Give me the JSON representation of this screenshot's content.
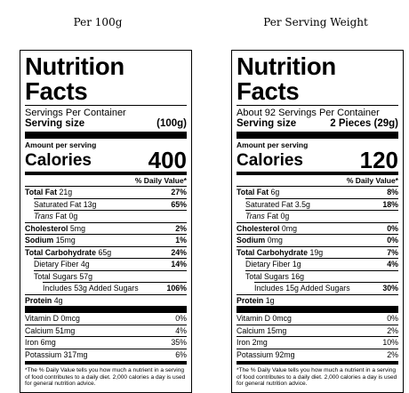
{
  "headings": {
    "left": "Per 100g",
    "right": "Per Serving Weight"
  },
  "labels": [
    {
      "title": "Nutrition Facts",
      "servings_line": "Servings Per Container",
      "serving_size_label": "Serving size",
      "serving_size_value": "(100g)",
      "amount_per_serving": "Amount per serving",
      "calories_label": "Calories",
      "calories_value": "400",
      "dv_header": "% Daily Value*",
      "total_fat": {
        "label": "Total Fat",
        "amount": "21g",
        "dv": "27%"
      },
      "saturated_fat": {
        "label": "Saturated Fat",
        "amount": "13g",
        "dv": "65%"
      },
      "trans_fat": {
        "label": "Trans",
        "rest": " Fat 0g"
      },
      "cholesterol": {
        "label": "Cholesterol",
        "amount": "5mg",
        "dv": "2%"
      },
      "sodium": {
        "label": "Sodium",
        "amount": "15mg",
        "dv": "1%"
      },
      "total_carb": {
        "label": "Total Carbohydrate",
        "amount": "65g",
        "dv": "24%"
      },
      "fiber": {
        "label": "Dietary Fiber",
        "amount": "4g",
        "dv": "14%"
      },
      "total_sugars": {
        "label": "Total Sugars",
        "amount": "57g"
      },
      "added_sugars": {
        "text": "Includes 53g Added Sugars",
        "dv": "106%"
      },
      "protein": {
        "label": "Protein",
        "amount": "4g"
      },
      "vitamin_d": {
        "text": "Vitamin D 0mcg",
        "dv": "0%"
      },
      "calcium": {
        "text": "Calcium 51mg",
        "dv": "4%"
      },
      "iron": {
        "text": "Iron 6mg",
        "dv": "35%"
      },
      "potassium": {
        "text": "Potassium 317mg",
        "dv": "6%"
      },
      "footnote": "*The % Daily Value tells you how much a nutrient in a serving of food contributes to a daily diet. 2,000 calories a day is used for general nutrition advice."
    },
    {
      "title": "Nutrition Facts",
      "servings_line": "About 92 Servings Per Container",
      "serving_size_label": "Serving size",
      "serving_size_value": "2 Pieces (29g)",
      "amount_per_serving": "Amount per serving",
      "calories_label": "Calories",
      "calories_value": "120",
      "dv_header": "% Daily Value*",
      "total_fat": {
        "label": "Total Fat",
        "amount": "6g",
        "dv": "8%"
      },
      "saturated_fat": {
        "label": "Saturated Fat",
        "amount": "3.5g",
        "dv": "18%"
      },
      "trans_fat": {
        "label": "Trans",
        "rest": " Fat 0g"
      },
      "cholesterol": {
        "label": "Cholesterol",
        "amount": "0mg",
        "dv": "0%"
      },
      "sodium": {
        "label": "Sodium",
        "amount": "0mg",
        "dv": "0%"
      },
      "total_carb": {
        "label": "Total Carbohydrate",
        "amount": "19g",
        "dv": "7%"
      },
      "fiber": {
        "label": "Dietary Fiber",
        "amount": "1g",
        "dv": "4%"
      },
      "total_sugars": {
        "label": "Total Sugars",
        "amount": "16g"
      },
      "added_sugars": {
        "text": "Includes 15g Added Sugars",
        "dv": "30%"
      },
      "protein": {
        "label": "Protein",
        "amount": "1g"
      },
      "vitamin_d": {
        "text": "Vitamin D 0mcg",
        "dv": "0%"
      },
      "calcium": {
        "text": "Calcium 15mg",
        "dv": "2%"
      },
      "iron": {
        "text": "Iron 2mg",
        "dv": "10%"
      },
      "potassium": {
        "text": "Potassium 92mg",
        "dv": "2%"
      },
      "footnote": "*The % Daily Value tells you how much a nutrient in a serving of food contributes to a daily diet. 2,000 calories a day is used for general nutrition advice."
    }
  ]
}
